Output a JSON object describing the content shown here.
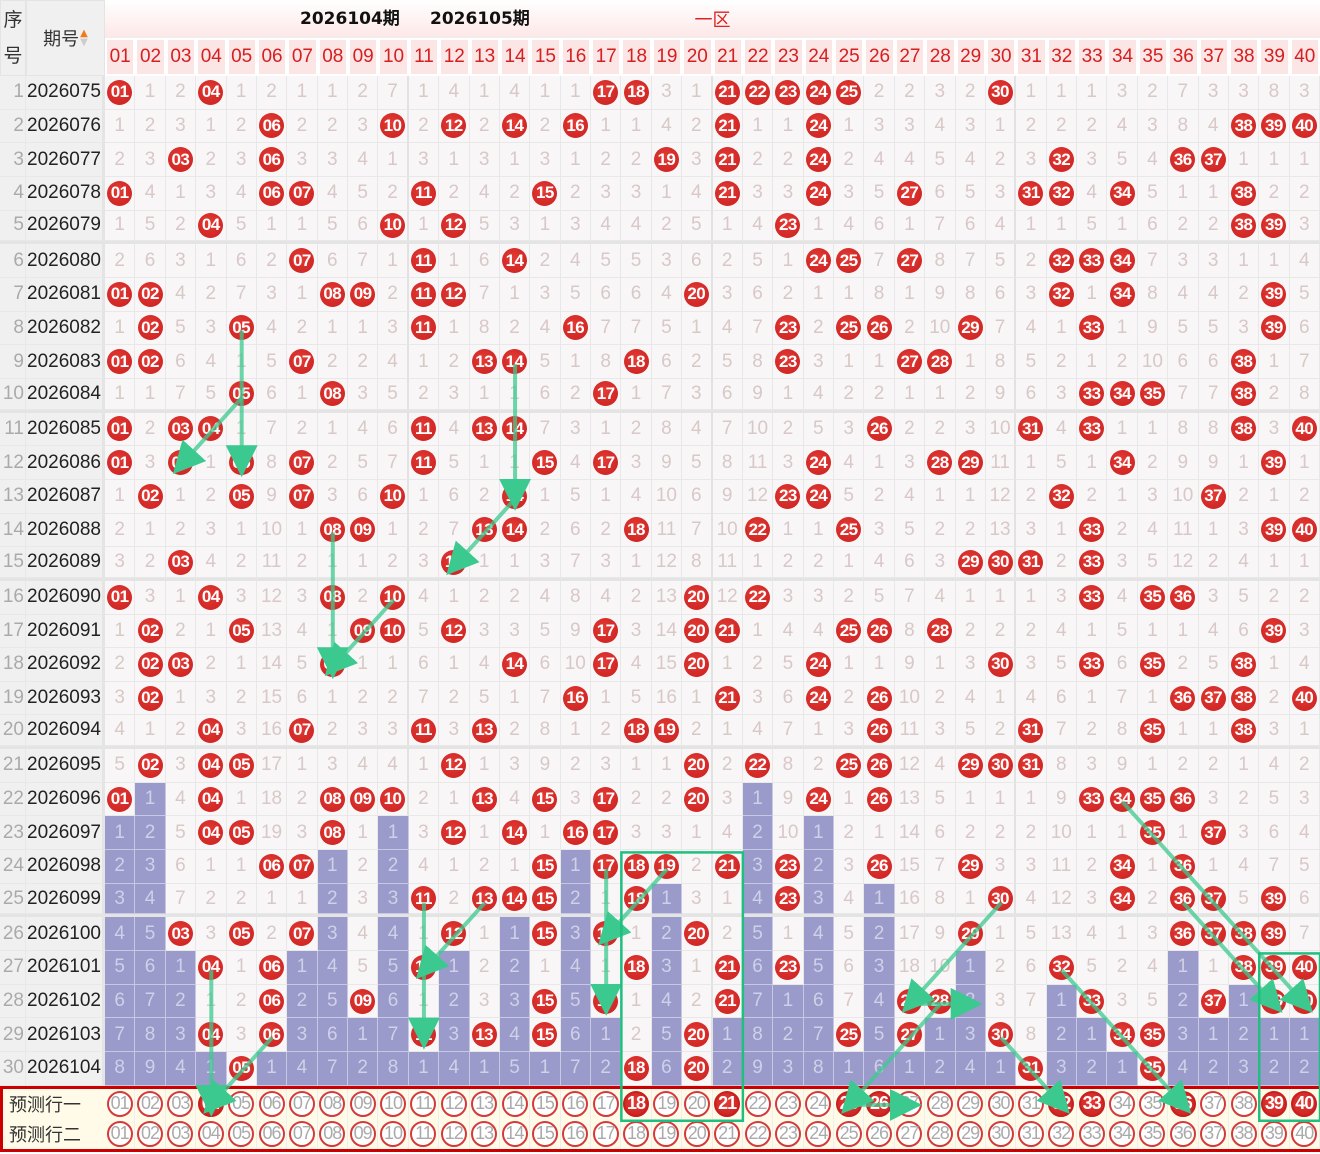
{
  "header": {
    "seq_label": [
      "序",
      "号"
    ],
    "issue_label": "期号",
    "sort_icon": "sort-arrows-icon",
    "zone_label": "一区",
    "columns": [
      "01",
      "02",
      "03",
      "04",
      "05",
      "06",
      "07",
      "08",
      "09",
      "10",
      "11",
      "12",
      "13",
      "14",
      "15",
      "16",
      "17",
      "18",
      "19",
      "20",
      "21",
      "22",
      "23",
      "24",
      "25",
      "26",
      "27",
      "28",
      "29",
      "30",
      "31",
      "32",
      "33",
      "34",
      "35",
      "36",
      "37",
      "38",
      "39",
      "40"
    ]
  },
  "legend": {
    "hit": "red ball = drawn number",
    "bar": "p prefix = highlighted miss-count bar"
  },
  "colors": {
    "ball": "#d42424",
    "bar": "#9a9bcb",
    "annotation": "#3cc98f",
    "border": "#cc0000"
  },
  "rows": [
    {
      "seq": "1",
      "issue": "2026075",
      "cells": "01 1 2 04 1 2 1 1 2 7 1 4 1 4 1 1 17 18 3 1 21 22 23 24 25 2 2 3 2 30 1 1 1 3 2 7 3 3 8 3"
    },
    {
      "seq": "2",
      "issue": "2026076",
      "cells": "1 2 3 1 2 06 2 2 3 10 2 12 2 14 2 16 1 1 4 2 21 1 1 24 1 3 3 4 3 1 2 2 2 4 3 8 4 38 39 40"
    },
    {
      "seq": "3",
      "issue": "2026077",
      "cells": "2 3 03 2 3 06 3 3 4 1 3 1 3 1 3 1 2 2 19 3 21 2 2 24 2 4 4 5 4 2 3 32 3 5 4 36 37 1 1 1"
    },
    {
      "seq": "4",
      "issue": "2026078",
      "cells": "01 4 1 3 4 06 07 4 5 2 11 2 4 2 15 2 3 3 1 4 21 3 3 24 3 5 27 6 5 3 31 32 4 34 5 1 1 38 2 2"
    },
    {
      "seq": "5",
      "issue": "2026079",
      "cells": "1 5 2 04 5 1 1 5 6 10 1 12 5 3 1 3 4 4 2 5 1 4 23 1 4 6 1 7 6 4 1 1 5 1 6 2 2 38 39 3"
    },
    {
      "seq": "6",
      "issue": "2026080",
      "cells": "2 6 3 1 6 2 07 6 7 1 11 1 6 14 2 4 5 5 3 6 2 5 1 24 25 7 27 8 7 5 2 32 33 34 7 3 3 1 1 4"
    },
    {
      "seq": "7",
      "issue": "2026081",
      "cells": "01 02 4 2 7 3 1 08 09 2 11 12 7 1 3 5 6 6 4 20 3 6 2 1 1 8 1 9 8 6 3 32 1 34 8 4 4 2 39 5"
    },
    {
      "seq": "8",
      "issue": "2026082",
      "cells": "1 02 5 3 05 4 2 1 1 3 11 1 8 2 4 16 7 7 5 1 4 7 23 2 25 26 2 10 29 7 4 1 33 1 9 5 5 3 39 6"
    },
    {
      "seq": "9",
      "issue": "2026083",
      "cells": "01 02 6 4 1 5 07 2 2 4 1 2 13 14 5 1 8 18 6 2 5 8 23 3 1 1 27 28 1 8 5 2 1 2 10 6 6 38 1 7"
    },
    {
      "seq": "10",
      "issue": "2026084",
      "cells": "1 1 7 5 05 6 1 08 3 5 2 3 1 1 6 2 17 1 7 3 6 9 1 4 2 2 1 1 2 9 6 3 33 34 35 7 7 38 2 8"
    },
    {
      "seq": "11",
      "issue": "2026085",
      "cells": "01 2 03 04 1 7 2 1 4 6 11 4 13 14 7 3 1 2 8 4 7 10 2 5 3 26 2 2 3 10 31 4 33 1 1 8 8 38 3 40"
    },
    {
      "seq": "12",
      "issue": "2026086",
      "cells": "01 3 03 1 05 8 07 2 5 7 11 5 1 1 15 4 17 3 9 5 8 11 3 24 4 1 3 28 29 11 1 5 1 34 2 9 9 1 39 1"
    },
    {
      "seq": "13",
      "issue": "2026087",
      "cells": "1 02 1 2 05 9 07 3 6 10 1 6 2 14 1 5 1 4 10 6 9 12 23 24 5 2 4 1 1 12 2 32 2 1 3 10 37 2 1 2"
    },
    {
      "seq": "14",
      "issue": "2026088",
      "cells": "2 1 2 3 1 10 1 08 09 1 2 7 13 14 2 6 2 18 11 7 10 22 1 1 25 3 5 2 2 13 3 1 33 2 4 11 1 3 39 40"
    },
    {
      "seq": "15",
      "issue": "2026089",
      "cells": "3 2 03 4 2 11 2 1 1 2 3 12 1 1 3 7 3 1 12 8 11 1 2 2 1 4 6 3 29 30 31 2 33 3 5 12 2 4 1 1"
    },
    {
      "seq": "16",
      "issue": "2026090",
      "cells": "01 3 1 04 3 12 3 08 2 10 4 1 2 2 4 8 4 2 13 20 12 22 3 3 2 5 7 4 1 1 1 3 33 4 35 36 3 5 2 2"
    },
    {
      "seq": "17",
      "issue": "2026091",
      "cells": "1 02 2 1 05 13 4 1 09 10 5 12 3 3 5 9 17 3 14 20 21 1 4 4 25 26 8 28 2 2 2 4 1 5 1 1 4 6 39 3"
    },
    {
      "seq": "18",
      "issue": "2026092",
      "cells": "2 02 03 2 1 14 5 08 1 1 6 1 4 14 6 10 17 4 15 20 1 2 5 24 1 1 9 1 3 30 3 5 33 6 35 2 5 38 1 4"
    },
    {
      "seq": "19",
      "issue": "2026093",
      "cells": "3 02 1 3 2 15 6 1 2 2 7 2 5 1 7 16 1 5 16 1 21 3 6 24 2 26 10 2 4 1 4 6 1 7 1 36 37 38 2 40"
    },
    {
      "seq": "20",
      "issue": "2026094",
      "cells": "4 1 2 04 3 16 07 2 3 3 11 3 13 2 8 1 2 18 19 2 1 4 7 1 3 26 11 3 5 2 31 7 2 8 35 1 1 38 3 1"
    },
    {
      "seq": "21",
      "issue": "2026095",
      "cells": "5 02 3 04 05 17 1 3 4 4 1 12 1 3 9 2 3 1 1 20 2 22 8 2 25 26 12 4 29 30 31 8 3 9 1 2 2 1 4 2"
    },
    {
      "seq": "22",
      "issue": "2026096",
      "cells": "01 p1 4 04 1 18 2 08 09 10 2 1 13 4 15 3 17 2 2 20 3 p1 9 24 1 26 13 5 1 1 1 9 33 34 35 36 3 2 5 3"
    },
    {
      "seq": "23",
      "issue": "2026097",
      "cells": "p1 p2 5 04 05 19 3 08 1 p1 3 12 1 14 1 16 17 3 3 1 4 p2 10 p1 2 1 14 6 2 2 2 10 1 1 35 1 37 3 6 4"
    },
    {
      "seq": "24",
      "issue": "2026098",
      "cells": "p2 p3 6 1 1 06 07 p1 2 p2 4 1 2 1 15 p1 17 18 19 2 21 p3 23 p2 3 26 15 7 29 3 3 11 2 34 1 36 1 4 7 5"
    },
    {
      "seq": "25",
      "issue": "2026099",
      "cells": "p3 p4 7 2 2 1 1 p2 3 p3 11 2 13 14 15 p2 1 18 p1 3 1 p4 23 p3 4 p1 16 8 1 30 4 12 3 34 2 36 37 5 39 6"
    },
    {
      "seq": "26",
      "issue": "2026100",
      "cells": "p4 p5 03 3 05 2 07 p3 4 p4 1 12 1 p1 15 p3 17 1 p2 20 2 p5 1 p4 5 p2 17 9 29 1 5 13 4 1 3 36 37 38 39 7"
    },
    {
      "seq": "27",
      "issue": "2026101",
      "cells": "p5 p6 p1 04 1 06 p1 p4 5 p5 11 p1 2 p2 1 p4 1 18 p3 1 21 p6 23 p5 6 p3 18 10 p1 2 6 32 5 2 4 p1 1 38 39 40"
    },
    {
      "seq": "28",
      "issue": "2026102",
      "cells": "p6 p7 p2 1 2 06 p2 p5 09 p6 1 p2 3 p3 15 p5 17 1 p4 2 21 p7 p1 p6 7 p4 27 28 p2 3 7 p1 33 3 5 p2 37 p1 39 40"
    },
    {
      "seq": "29",
      "issue": "2026103",
      "cells": "p7 p8 p3 04 3 06 p3 p6 p1 p7 11 p3 13 p4 15 p6 p1 2 p5 20 p1 p8 p2 p7 25 p5 27 p1 p3 30 8 p2 p1 34 35 p3 p1 p2 p1 p1"
    },
    {
      "seq": "30",
      "issue": "2026104",
      "cells": "p8 p9 p4 p1 05 p1 p4 p7 p2 p8 p1 p4 p1 p5 p1 p7 p2 18 p6 20 p2 p9 p3 p8 p1 p6 p1 p2 p4 p1 31 p3 p2 p1 35 p4 p2 p3 p2 p2"
    }
  ],
  "predict": [
    {
      "label": "预测行一",
      "selected": [
        "04",
        "18",
        "21",
        "25",
        "26",
        "32",
        "33",
        "36",
        "39",
        "40"
      ]
    },
    {
      "label": "预测行二",
      "selected": []
    }
  ],
  "annotations": {
    "note1": "2026104期",
    "note2": "2026105期"
  }
}
